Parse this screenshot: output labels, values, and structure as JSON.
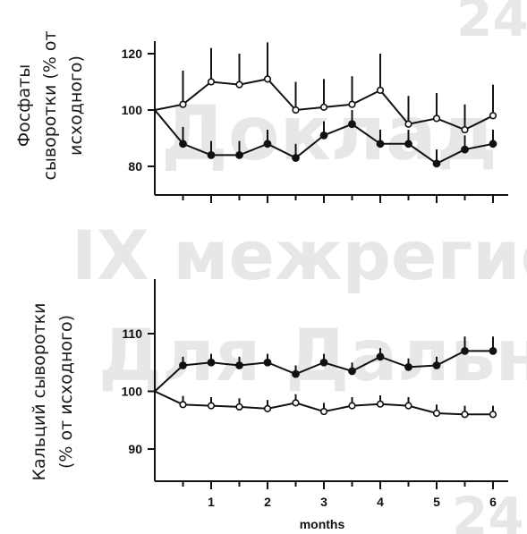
{
  "watermark": {
    "lines": [
      "24",
      "Доклад",
      "IX межрегио",
      "Для Дальне",
      "24"
    ]
  },
  "chart_data": [
    {
      "type": "line",
      "ylabel": [
        "Фосфаты",
        "сыворотки (% от",
        "исходного)"
      ],
      "xlabel": "",
      "ylim": [
        72,
        128
      ],
      "xlim": [
        0,
        6.3
      ],
      "yticks": [
        80,
        100,
        120
      ],
      "grid": false,
      "series": [
        {
          "marker": "open-circle",
          "x": [
            0,
            0.5,
            1,
            1.5,
            2,
            2.5,
            3,
            3.5,
            4,
            4.5,
            5,
            5.5,
            6
          ],
          "values": [
            100,
            102,
            110,
            109,
            111,
            100,
            101,
            102,
            107,
            95,
            97,
            93,
            98
          ],
          "error_up": [
            0,
            12,
            12,
            11,
            13,
            10,
            10,
            10,
            13,
            10,
            9,
            9,
            11
          ]
        },
        {
          "marker": "filled-circle",
          "x": [
            0,
            0.5,
            1,
            1.5,
            2,
            2.5,
            3,
            3.5,
            4,
            4.5,
            5,
            5.5,
            6
          ],
          "values": [
            100,
            88,
            84,
            84,
            88,
            83,
            91,
            95,
            88,
            88,
            81,
            86,
            88
          ],
          "error_up": [
            0,
            6,
            5,
            5,
            5,
            5,
            5,
            5,
            5,
            5,
            5,
            5,
            5
          ]
        }
      ]
    },
    {
      "type": "line",
      "ylabel": [
        "Кальций сыворотки",
        "(% от исходного)"
      ],
      "xlabel": "months",
      "ylim": [
        85,
        120
      ],
      "xlim": [
        0,
        6.3
      ],
      "yticks": [
        90,
        100,
        110
      ],
      "xticks": [
        1,
        2,
        3,
        4,
        5,
        6
      ],
      "grid": false,
      "series": [
        {
          "marker": "filled-circle",
          "x": [
            0,
            0.5,
            1,
            1.5,
            2,
            2.5,
            3,
            3.5,
            4,
            4.5,
            5,
            5.5,
            6
          ],
          "values": [
            100,
            104.5,
            105,
            104.5,
            105,
            103,
            105,
            103.5,
            106,
            104.2,
            104.5,
            107,
            107
          ],
          "error_up": [
            0,
            1.5,
            1.5,
            1.5,
            1.5,
            1.5,
            1.5,
            1.5,
            1.5,
            1.5,
            1.5,
            2.5,
            2.5
          ]
        },
        {
          "marker": "open-circle",
          "x": [
            0,
            0.5,
            1,
            1.5,
            2,
            2.5,
            3,
            3.5,
            4,
            4.5,
            5,
            5.5,
            6
          ],
          "values": [
            100,
            97.7,
            97.5,
            97.3,
            97,
            98,
            96.5,
            97.5,
            97.8,
            97.5,
            96.2,
            96,
            96
          ],
          "error_up": [
            0,
            1.5,
            1.5,
            1.5,
            1.5,
            1.5,
            1.5,
            1.5,
            1.5,
            1.5,
            1.5,
            1.5,
            1.5
          ]
        }
      ]
    }
  ]
}
